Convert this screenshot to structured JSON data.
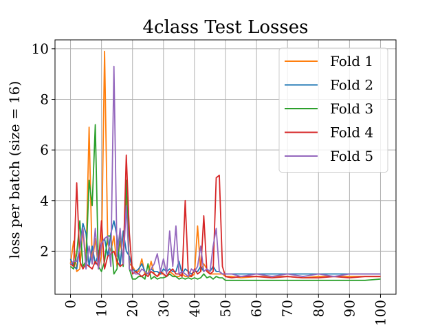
{
  "chart_data": {
    "type": "line",
    "title": "4class Test Losses",
    "xlabel": "",
    "ylabel": "loss per batch (size = 16)",
    "xlim": [
      -5,
      105
    ],
    "ylim": [
      0.3,
      10.35
    ],
    "xticks": [
      0,
      10,
      20,
      30,
      40,
      50,
      60,
      70,
      80,
      90,
      100
    ],
    "yticks": [
      2,
      4,
      6,
      8,
      10
    ],
    "grid": true,
    "legend": "top-right",
    "series": [
      {
        "name": "Fold 1",
        "color": "#ff7f0e",
        "x": [
          0,
          1,
          2,
          3,
          4,
          5,
          6,
          7,
          8,
          9,
          10,
          11,
          12,
          13,
          14,
          15,
          16,
          17,
          18,
          19,
          20,
          21,
          22,
          23,
          24,
          25,
          26,
          27,
          28,
          29,
          30,
          31,
          32,
          33,
          34,
          35,
          36,
          37,
          38,
          39,
          40,
          41,
          42,
          43,
          44,
          45,
          46,
          47,
          48,
          49,
          50,
          52,
          55,
          60,
          65,
          70,
          75,
          80,
          85,
          90,
          95,
          100
        ],
        "y": [
          1.5,
          2.4,
          1.2,
          1.3,
          2.9,
          1.6,
          6.9,
          1.5,
          2.5,
          1.3,
          1.8,
          9.9,
          2.3,
          2.0,
          2.6,
          1.4,
          2.4,
          1.6,
          4.1,
          1.5,
          1.4,
          1.2,
          1.2,
          1.7,
          1.1,
          1.1,
          1.6,
          1.1,
          1.0,
          1.1,
          1.1,
          1.0,
          1.2,
          1.1,
          1.0,
          1.0,
          1.1,
          1.0,
          1.0,
          1.0,
          1.1,
          3.0,
          1.2,
          1.5,
          1.3,
          1.1,
          1.1,
          1.1,
          1.1,
          1.1,
          1.0,
          1.0,
          0.95,
          1.0,
          1.0,
          1.0,
          0.95,
          1.0,
          1.0,
          1.0,
          1.0,
          1.0
        ]
      },
      {
        "name": "Fold 2",
        "color": "#1f77b4",
        "x": [
          0,
          1,
          2,
          3,
          4,
          5,
          6,
          7,
          8,
          9,
          10,
          11,
          12,
          13,
          14,
          15,
          16,
          17,
          18,
          19,
          20,
          21,
          22,
          23,
          24,
          25,
          26,
          27,
          28,
          29,
          30,
          31,
          32,
          33,
          34,
          35,
          36,
          37,
          38,
          39,
          40,
          41,
          42,
          43,
          44,
          45,
          46,
          47,
          48,
          49,
          50,
          52,
          55,
          60,
          65,
          70,
          75,
          80,
          85,
          90,
          95,
          100
        ],
        "y": [
          1.7,
          1.4,
          1.3,
          2.2,
          3.1,
          2.7,
          1.4,
          2.2,
          1.5,
          1.9,
          2.3,
          2.5,
          1.8,
          2.7,
          3.2,
          2.6,
          1.4,
          2.8,
          2.0,
          1.8,
          1.3,
          1.2,
          1.3,
          1.5,
          1.2,
          1.1,
          1.3,
          1.2,
          1.2,
          1.1,
          1.3,
          1.2,
          1.3,
          1.2,
          1.2,
          1.6,
          1.1,
          1.3,
          1.2,
          1.1,
          1.2,
          1.2,
          1.4,
          1.2,
          1.3,
          1.2,
          1.4,
          1.2,
          1.2,
          1.1,
          1.1,
          1.1,
          1.1,
          1.1,
          1.1,
          1.1,
          1.1,
          1.1,
          1.1,
          1.1,
          1.1,
          1.1
        ]
      },
      {
        "name": "Fold 3",
        "color": "#2ca02c",
        "x": [
          0,
          1,
          2,
          3,
          4,
          5,
          6,
          7,
          8,
          9,
          10,
          11,
          12,
          13,
          14,
          15,
          16,
          17,
          18,
          19,
          20,
          21,
          22,
          23,
          24,
          25,
          26,
          27,
          28,
          29,
          30,
          31,
          32,
          33,
          34,
          35,
          36,
          37,
          38,
          39,
          40,
          41,
          42,
          43,
          44,
          45,
          46,
          47,
          48,
          49,
          50,
          52,
          55,
          60,
          65,
          70,
          75,
          80,
          85,
          90,
          95,
          100
        ],
        "y": [
          1.4,
          1.3,
          1.9,
          3.2,
          1.4,
          1.6,
          4.8,
          3.8,
          7.0,
          1.4,
          1.2,
          1.6,
          2.6,
          2.6,
          1.1,
          1.3,
          2.8,
          1.4,
          4.8,
          1.3,
          0.9,
          0.9,
          1.0,
          1.0,
          0.9,
          1.5,
          0.9,
          1.0,
          0.9,
          0.95,
          0.95,
          1.0,
          1.1,
          1.0,
          1.0,
          0.9,
          0.95,
          0.9,
          0.95,
          0.9,
          0.95,
          0.9,
          0.95,
          1.1,
          0.95,
          1.0,
          0.9,
          1.0,
          0.95,
          0.95,
          0.85,
          0.85,
          0.85,
          0.85,
          0.85,
          0.85,
          0.85,
          0.85,
          0.85,
          0.85,
          0.85,
          0.9
        ]
      },
      {
        "name": "Fold 4",
        "color": "#d62728",
        "x": [
          0,
          1,
          2,
          3,
          4,
          5,
          6,
          7,
          8,
          9,
          10,
          11,
          12,
          13,
          14,
          15,
          16,
          17,
          18,
          19,
          20,
          21,
          22,
          23,
          24,
          25,
          26,
          27,
          28,
          29,
          30,
          31,
          32,
          33,
          34,
          35,
          36,
          37,
          38,
          39,
          40,
          41,
          42,
          43,
          44,
          45,
          46,
          47,
          48,
          49,
          50,
          52,
          55,
          60,
          65,
          70,
          75,
          80,
          85,
          90,
          95,
          100
        ],
        "y": [
          1.5,
          1.4,
          4.7,
          1.6,
          1.3,
          1.5,
          1.4,
          1.3,
          1.6,
          1.4,
          3.2,
          1.3,
          1.8,
          1.9,
          2.0,
          1.6,
          1.4,
          1.5,
          5.8,
          2.7,
          1.1,
          1.2,
          1.1,
          1.0,
          1.1,
          1.0,
          1.2,
          1.1,
          1.0,
          1.2,
          1.1,
          1.0,
          1.2,
          1.3,
          1.1,
          1.1,
          1.0,
          4.0,
          1.1,
          1.0,
          1.3,
          1.1,
          1.2,
          3.4,
          1.2,
          1.1,
          1.2,
          4.9,
          5.0,
          1.4,
          1.0,
          0.95,
          1.0,
          1.0,
          0.95,
          1.0,
          0.95,
          0.95,
          1.0,
          0.95,
          1.0,
          1.0
        ]
      },
      {
        "name": "Fold 5",
        "color": "#9467bd",
        "x": [
          0,
          1,
          2,
          3,
          4,
          5,
          6,
          7,
          8,
          9,
          10,
          11,
          12,
          13,
          14,
          15,
          16,
          17,
          18,
          19,
          20,
          21,
          22,
          23,
          24,
          25,
          26,
          27,
          28,
          29,
          30,
          31,
          32,
          33,
          34,
          35,
          36,
          37,
          38,
          39,
          40,
          41,
          42,
          43,
          44,
          45,
          46,
          47,
          48,
          49,
          50,
          52,
          55,
          60,
          65,
          70,
          75,
          80,
          85,
          90,
          95,
          100
        ],
        "y": [
          1.5,
          1.6,
          1.6,
          2.1,
          2.9,
          1.3,
          2.2,
          1.5,
          2.9,
          1.3,
          2.3,
          2.5,
          2.6,
          1.4,
          9.3,
          1.8,
          2.9,
          1.5,
          3.8,
          1.3,
          1.2,
          1.1,
          1.1,
          1.3,
          1.2,
          1.1,
          1.3,
          1.5,
          1.9,
          1.2,
          1.7,
          1.1,
          2.8,
          1.4,
          3.0,
          1.1,
          1.2,
          1.1,
          1.0,
          1.3,
          1.2,
          1.4,
          2.2,
          1.2,
          1.3,
          1.2,
          2.2,
          2.9,
          1.2,
          1.1,
          1.1,
          1.1,
          1.0,
          1.1,
          1.0,
          1.1,
          1.0,
          1.1,
          1.0,
          1.1,
          1.1,
          1.1
        ]
      }
    ]
  }
}
